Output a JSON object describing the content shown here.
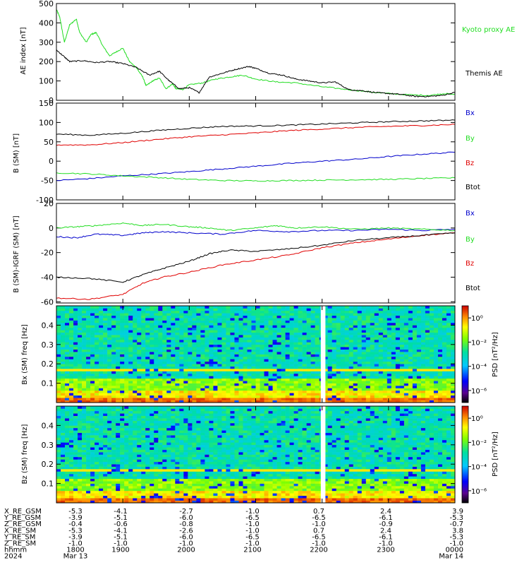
{
  "colors": {
    "black": "#000000",
    "red": "#e00000",
    "green": "#22dd22",
    "blue": "#0000cc",
    "gap": "#ffffff"
  },
  "chart_data": [
    {
      "type": "line",
      "ylabel": "AE index [nT]",
      "ylim": [
        0,
        500
      ],
      "yticks": [
        0,
        100,
        200,
        300,
        400,
        500
      ],
      "xlim": [
        18.0,
        24.0
      ],
      "legend": "right",
      "series": [
        {
          "name": "Kyoto proxy AE",
          "color": "green",
          "x": [
            18.0,
            18.05,
            18.12,
            18.2,
            18.3,
            18.35,
            18.45,
            18.52,
            18.6,
            18.7,
            18.8,
            18.9,
            19.0,
            19.1,
            19.2,
            19.3,
            19.35,
            19.45,
            19.55,
            19.65,
            19.75,
            19.8,
            19.9,
            20.0,
            20.2,
            20.4,
            20.6,
            20.8,
            21.0,
            21.3,
            21.6,
            22.0,
            22.4,
            22.8,
            23.2,
            23.6,
            23.85,
            24.0
          ],
          "y": [
            470,
            430,
            300,
            390,
            420,
            350,
            300,
            340,
            350,
            280,
            230,
            250,
            270,
            200,
            170,
            120,
            75,
            100,
            115,
            60,
            85,
            60,
            55,
            80,
            90,
            110,
            120,
            130,
            110,
            95,
            90,
            70,
            55,
            40,
            30,
            25,
            35,
            30
          ]
        },
        {
          "name": "Themis AE",
          "color": "black",
          "x": [
            18.0,
            18.1,
            18.2,
            18.4,
            18.6,
            18.8,
            19.0,
            19.2,
            19.4,
            19.55,
            19.7,
            19.85,
            20.0,
            20.15,
            20.3,
            20.5,
            20.7,
            20.9,
            21.0,
            21.2,
            21.4,
            21.6,
            21.8,
            22.0,
            22.2,
            22.4,
            22.6,
            22.8,
            23.0,
            23.2,
            23.4,
            23.6,
            23.8,
            24.0
          ],
          "y": [
            260,
            230,
            200,
            205,
            195,
            200,
            190,
            170,
            130,
            150,
            100,
            60,
            65,
            40,
            120,
            140,
            160,
            175,
            165,
            140,
            130,
            110,
            100,
            90,
            95,
            55,
            50,
            40,
            35,
            30,
            20,
            20,
            25,
            40
          ]
        }
      ]
    },
    {
      "type": "line",
      "ylabel": "B (SM) [nT]",
      "ylim": [
        -100,
        150
      ],
      "yticks": [
        -100,
        -50,
        0,
        50,
        100,
        150
      ],
      "xlim": [
        18.0,
        24.0
      ],
      "legend": "right",
      "series": [
        {
          "name": "Bx",
          "color": "blue",
          "x": [
            18.0,
            18.5,
            19.0,
            19.5,
            20.0,
            20.5,
            21.0,
            21.5,
            22.0,
            22.5,
            23.0,
            23.5,
            24.0
          ],
          "y": [
            -50,
            -45,
            -38,
            -33,
            -27,
            -20,
            -13,
            -6,
            0,
            5,
            12,
            18,
            23
          ]
        },
        {
          "name": "By",
          "color": "green",
          "x": [
            18.0,
            18.5,
            19.0,
            19.5,
            20.0,
            20.5,
            21.0,
            21.5,
            22.0,
            22.5,
            23.0,
            23.5,
            24.0
          ],
          "y": [
            -30,
            -33,
            -38,
            -42,
            -47,
            -50,
            -51,
            -50,
            -49,
            -48,
            -47,
            -45,
            -43
          ]
        },
        {
          "name": "Bz",
          "color": "red",
          "x": [
            18.0,
            18.5,
            19.0,
            19.5,
            20.0,
            20.5,
            21.0,
            21.5,
            22.0,
            22.5,
            23.0,
            23.5,
            24.0
          ],
          "y": [
            42,
            42,
            48,
            56,
            63,
            68,
            73,
            79,
            83,
            87,
            90,
            92,
            95
          ]
        },
        {
          "name": "Btot",
          "color": "black",
          "x": [
            18.0,
            18.5,
            19.0,
            19.5,
            20.0,
            20.5,
            21.0,
            21.5,
            22.0,
            22.5,
            23.0,
            23.5,
            24.0
          ],
          "y": [
            70,
            67,
            72,
            79,
            85,
            90,
            91,
            93,
            96,
            99,
            102,
            104,
            106
          ]
        }
      ]
    },
    {
      "type": "line",
      "ylabel": "B (SM)-IGRF (SM) [nT]",
      "ylim": [
        -61,
        20
      ],
      "yticks": [
        -60,
        -40,
        -20,
        0,
        20
      ],
      "xlim": [
        18.0,
        24.0
      ],
      "legend": "right",
      "series": [
        {
          "name": "Bx",
          "color": "blue",
          "x": [
            18.0,
            18.3,
            18.6,
            19.0,
            19.3,
            19.6,
            20.0,
            20.5,
            21.0,
            21.5,
            22.0,
            22.5,
            23.0,
            23.5,
            24.0
          ],
          "y": [
            -7,
            -8,
            -5,
            -6,
            -4,
            -3,
            -4,
            -5,
            -2,
            -3,
            -2,
            -2,
            -1,
            -2,
            -1
          ]
        },
        {
          "name": "By",
          "color": "green",
          "x": [
            18.0,
            18.3,
            18.6,
            19.0,
            19.3,
            19.6,
            20.0,
            20.3,
            20.6,
            21.0,
            21.3,
            21.6,
            22.0,
            22.5,
            23.0,
            23.5,
            24.0
          ],
          "y": [
            0,
            1,
            2,
            4,
            2,
            3,
            1,
            0,
            -2,
            0,
            2,
            0,
            1,
            -1,
            0,
            -1,
            -2
          ]
        },
        {
          "name": "Bz",
          "color": "red",
          "x": [
            18.0,
            18.5,
            19.0,
            19.3,
            19.6,
            20.0,
            20.5,
            21.0,
            21.5,
            22.0,
            22.5,
            23.0,
            23.5,
            24.0
          ],
          "y": [
            -57,
            -58,
            -54,
            -45,
            -40,
            -36,
            -30,
            -26,
            -22,
            -16,
            -12,
            -9,
            -6,
            -4
          ]
        },
        {
          "name": "Btot",
          "color": "black",
          "x": [
            18.0,
            18.5,
            19.0,
            19.3,
            19.6,
            20.0,
            20.3,
            20.6,
            21.0,
            21.5,
            22.0,
            22.5,
            23.0,
            23.5,
            24.0
          ],
          "y": [
            -40,
            -41,
            -44,
            -38,
            -33,
            -27,
            -21,
            -18,
            -19,
            -17,
            -14,
            -10,
            -8,
            -6,
            -4
          ]
        }
      ]
    },
    {
      "type": "heatmap",
      "ylabel": "Bx (SM) freq [Hz]",
      "ylim": [
        0,
        0.5
      ],
      "yticks": [
        0.1,
        0.2,
        0.3,
        0.4
      ],
      "xlim": [
        18.0,
        24.0
      ],
      "gap": [
        21.98,
        22.05
      ],
      "colorbar": {
        "label": "PSD [nT²/Hz]",
        "ticks": [
          "10⁰",
          "10⁻²",
          "10⁻⁴",
          "10⁻⁶"
        ],
        "tick_exponents": [
          0,
          -2,
          -4,
          -6
        ],
        "range": [
          -7,
          1
        ]
      }
    },
    {
      "type": "heatmap",
      "ylabel": "Bz (SM) freq [Hz]",
      "ylim": [
        0,
        0.5
      ],
      "yticks": [
        0.1,
        0.2,
        0.3,
        0.4
      ],
      "xlim": [
        18.0,
        24.0
      ],
      "gap": [
        21.98,
        22.05
      ],
      "colorbar": {
        "label": "PSD [nT²/Hz]",
        "ticks": [
          "10⁰",
          "10⁻²",
          "10⁻⁴",
          "10⁻⁶"
        ],
        "tick_exponents": [
          0,
          -2,
          -4,
          -6
        ],
        "range": [
          -7,
          1
        ]
      }
    }
  ],
  "ephemeris": {
    "rows": [
      {
        "label": "X_RE_GSM",
        "values": [
          "-5.3",
          "-4.1",
          "-2.7",
          "-1.0",
          "0.7",
          "2.4",
          "3.9"
        ]
      },
      {
        "label": "Y_RE_GSM",
        "values": [
          "-3.9",
          "-5.1",
          "-6.0",
          "-6.5",
          "-6.5",
          "-6.1",
          "-5.3"
        ]
      },
      {
        "label": "Z_RE_GSM",
        "values": [
          "-0.4",
          "-0.6",
          "-0.8",
          "-1.0",
          "-1.0",
          "-0.9",
          "-0.7"
        ]
      },
      {
        "label": "X_RE_SM",
        "values": [
          "-5.3",
          "-4.1",
          "-2.6",
          "-1.0",
          "0.7",
          "2.4",
          "3.8"
        ]
      },
      {
        "label": "Y_RE_SM",
        "values": [
          "-3.9",
          "-5.1",
          "-6.0",
          "-6.5",
          "-6.5",
          "-6.1",
          "-5.3"
        ]
      },
      {
        "label": "Z_RE_SM",
        "values": [
          "-1.0",
          "-1.0",
          "-1.0",
          "-1.0",
          "-1.0",
          "-1.0",
          "-1.0"
        ]
      },
      {
        "label": "hhmm",
        "values": [
          "1800",
          "1900",
          "2000",
          "2100",
          "2200",
          "2300",
          "0000"
        ]
      },
      {
        "label": "2024",
        "values": [
          "Mar 13",
          "",
          "",
          "",
          "",
          "",
          "Mar 14"
        ]
      }
    ]
  }
}
